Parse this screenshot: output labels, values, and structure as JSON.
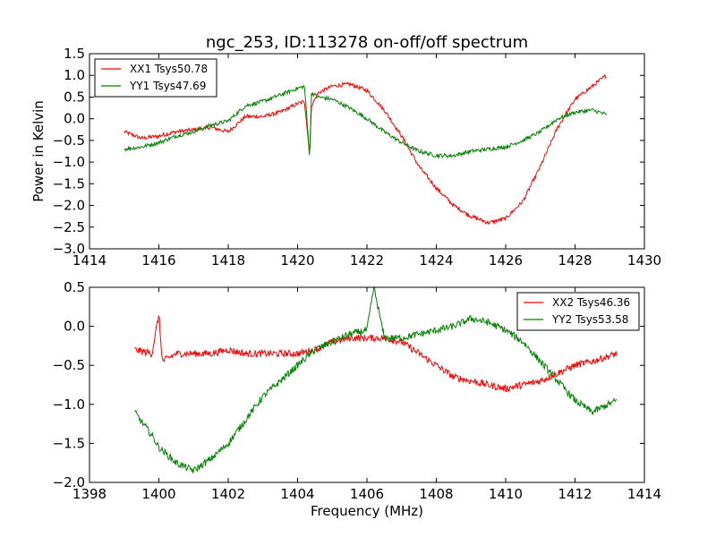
{
  "chart_data": [
    {
      "type": "line",
      "title": "ngc_253, ID:113278 on-off/off spectrum",
      "xlabel": "",
      "ylabel": "Power in Kelvin",
      "xlim": [
        1414,
        1430
      ],
      "ylim": [
        -3.0,
        1.5
      ],
      "xticks": [
        "1414",
        "1416",
        "1418",
        "1420",
        "1422",
        "1424",
        "1426",
        "1428",
        "1430"
      ],
      "yticks": [
        "1.5",
        "1.0",
        "0.5",
        "0.0",
        "−0.5",
        "−1.0",
        "−1.5",
        "−2.0",
        "−2.5",
        "−3.0"
      ],
      "grid": false,
      "legend_position": "top-left",
      "series": [
        {
          "name": "XX1 Tsys50.78",
          "color": "#ff0000",
          "x": [
            1415.0,
            1415.5,
            1416.0,
            1416.5,
            1417.0,
            1417.5,
            1418.0,
            1418.5,
            1419.0,
            1419.5,
            1420.0,
            1420.2,
            1420.35,
            1420.4,
            1420.6,
            1421.0,
            1421.5,
            1422.0,
            1422.5,
            1423.0,
            1423.5,
            1424.0,
            1424.5,
            1425.0,
            1425.5,
            1426.0,
            1426.5,
            1427.0,
            1427.5,
            1428.0,
            1428.5,
            1428.9
          ],
          "values": [
            -0.3,
            -0.45,
            -0.4,
            -0.3,
            -0.25,
            -0.2,
            -0.3,
            0.05,
            0.05,
            0.15,
            0.35,
            0.4,
            -0.85,
            0.3,
            0.6,
            0.75,
            0.8,
            0.65,
            0.2,
            -0.4,
            -1.1,
            -1.6,
            -2.0,
            -2.25,
            -2.4,
            -2.3,
            -1.9,
            -1.1,
            -0.2,
            0.45,
            0.75,
            1.0
          ]
        },
        {
          "name": "YY1 Tsys47.69",
          "color": "#008000",
          "x": [
            1415.0,
            1415.5,
            1416.0,
            1416.5,
            1417.0,
            1417.5,
            1418.0,
            1418.5,
            1419.0,
            1419.5,
            1420.0,
            1420.2,
            1420.35,
            1420.4,
            1420.6,
            1421.0,
            1421.5,
            1422.0,
            1422.5,
            1423.0,
            1423.5,
            1424.0,
            1424.5,
            1425.0,
            1425.5,
            1426.0,
            1426.5,
            1427.0,
            1427.5,
            1428.0,
            1428.5,
            1428.9
          ],
          "values": [
            -0.7,
            -0.65,
            -0.55,
            -0.4,
            -0.3,
            -0.15,
            -0.05,
            0.3,
            0.4,
            0.55,
            0.7,
            0.75,
            -0.9,
            0.6,
            0.5,
            0.45,
            0.25,
            0.0,
            -0.3,
            -0.55,
            -0.75,
            -0.85,
            -0.85,
            -0.75,
            -0.7,
            -0.65,
            -0.5,
            -0.3,
            0.0,
            0.15,
            0.2,
            0.1
          ]
        }
      ]
    },
    {
      "type": "line",
      "title": "",
      "xlabel": "Frequency (MHz)",
      "ylabel": "",
      "xlim": [
        1398,
        1414
      ],
      "ylim": [
        -2.0,
        0.5
      ],
      "xticks": [
        "1398",
        "1400",
        "1402",
        "1404",
        "1406",
        "1408",
        "1410",
        "1412",
        "1414"
      ],
      "yticks": [
        "0.5",
        "0.0",
        "−0.5",
        "−1.0",
        "−1.5",
        "−2.0"
      ],
      "grid": false,
      "legend_position": "top-right",
      "series": [
        {
          "name": "XX2 Tsys46.36",
          "color": "#ff0000",
          "x": [
            1399.3,
            1399.8,
            1400.0,
            1400.1,
            1400.5,
            1401.0,
            1401.5,
            1402.0,
            1402.5,
            1403.0,
            1403.5,
            1404.0,
            1404.5,
            1405.0,
            1405.5,
            1406.0,
            1406.5,
            1407.0,
            1407.5,
            1408.0,
            1408.5,
            1409.0,
            1409.5,
            1410.0,
            1410.5,
            1411.0,
            1411.5,
            1412.0,
            1412.5,
            1413.2
          ],
          "values": [
            -0.3,
            -0.35,
            0.15,
            -0.45,
            -0.35,
            -0.35,
            -0.35,
            -0.3,
            -0.35,
            -0.35,
            -0.35,
            -0.35,
            -0.3,
            -0.2,
            -0.15,
            -0.15,
            -0.15,
            -0.2,
            -0.35,
            -0.5,
            -0.65,
            -0.7,
            -0.75,
            -0.8,
            -0.75,
            -0.7,
            -0.6,
            -0.5,
            -0.45,
            -0.35
          ]
        },
        {
          "name": "YY2 Tsys53.58",
          "color": "#008000",
          "x": [
            1399.3,
            1399.8,
            1400.0,
            1400.5,
            1401.0,
            1401.5,
            1402.0,
            1402.5,
            1403.0,
            1403.5,
            1404.0,
            1404.5,
            1405.0,
            1405.5,
            1406.0,
            1406.2,
            1406.5,
            1407.0,
            1407.5,
            1408.0,
            1408.5,
            1409.0,
            1409.5,
            1410.0,
            1410.5,
            1411.0,
            1411.5,
            1412.0,
            1412.5,
            1413.2
          ],
          "values": [
            -1.1,
            -1.4,
            -1.55,
            -1.75,
            -1.85,
            -1.7,
            -1.5,
            -1.2,
            -0.9,
            -0.7,
            -0.5,
            -0.3,
            -0.2,
            -0.1,
            -0.05,
            0.5,
            -0.15,
            -0.15,
            -0.1,
            -0.05,
            0.0,
            0.1,
            0.05,
            -0.05,
            -0.2,
            -0.45,
            -0.7,
            -0.95,
            -1.1,
            -0.95
          ]
        }
      ]
    }
  ]
}
